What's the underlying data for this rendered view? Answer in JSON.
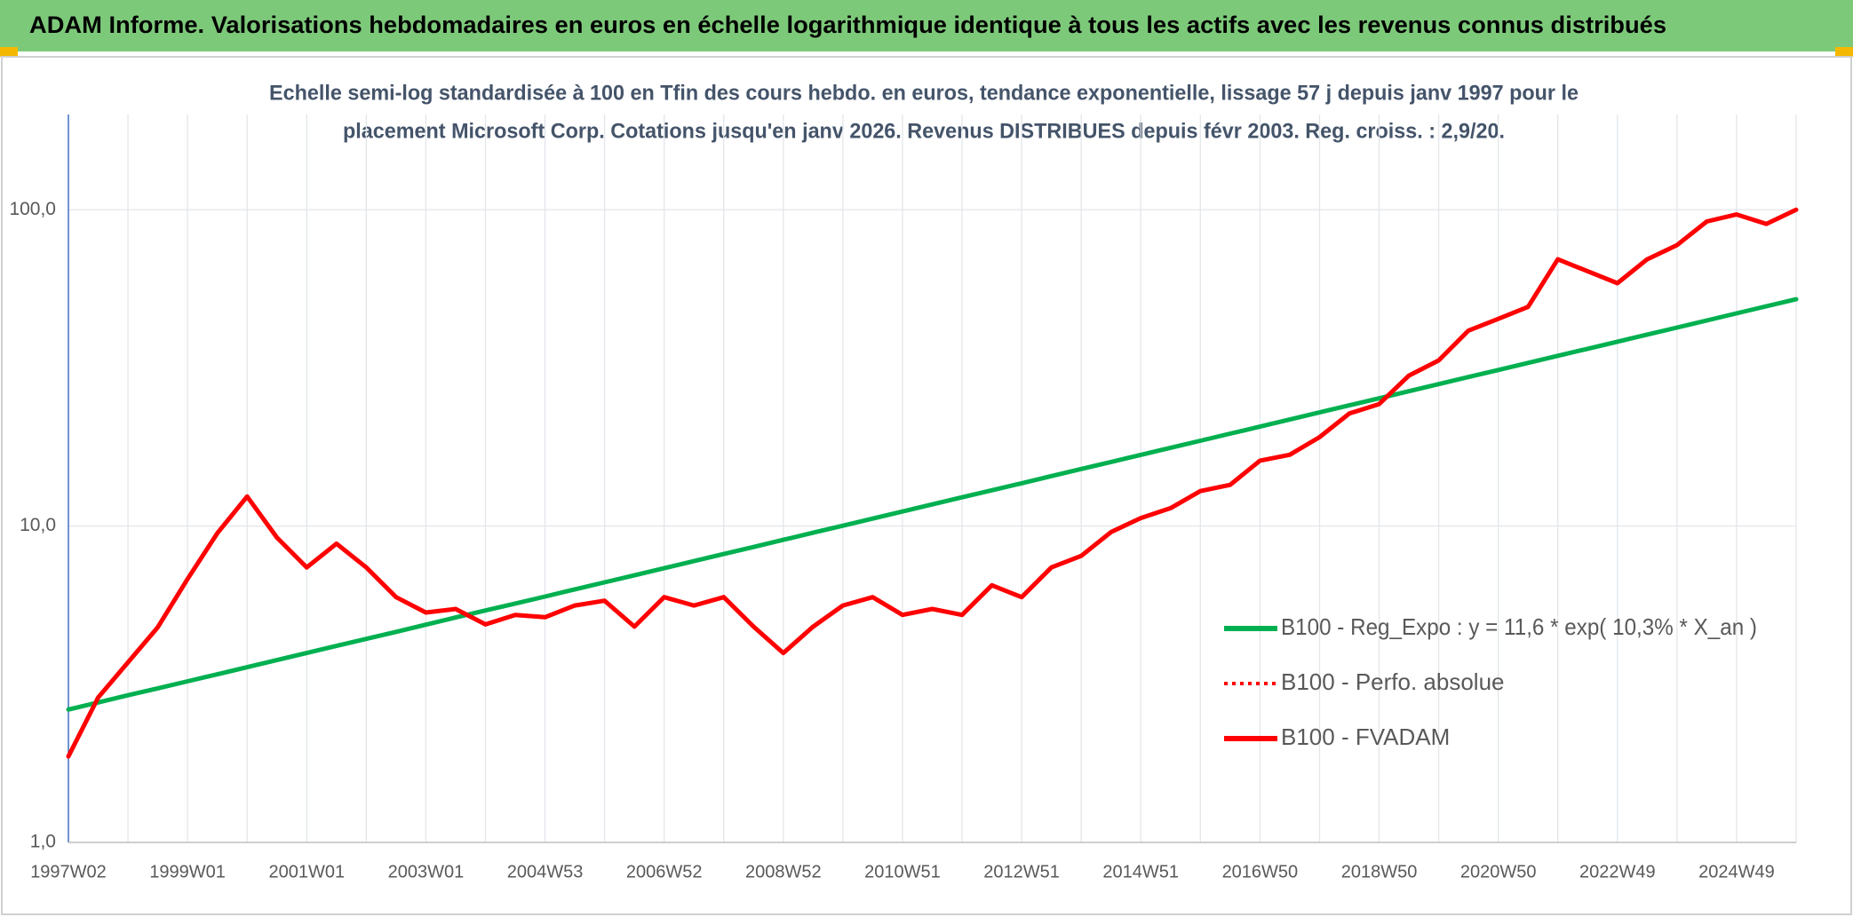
{
  "chart_data": {
    "type": "line",
    "title": "ADAM Informe. Valorisations hebdomadaires en euros en échelle logarithmique identique à tous les actifs avec les revenus connus distribués",
    "subtitle": [
      "Echelle semi-log standardisée à 100 en Tfin des cours hebdo. en euros, tendance exponentielle, lissage 57 j depuis janv 1997 pour le",
      "placement Microsoft Corp. Cotations jusqu'en janv 2026. Revenus DISTRIBUES depuis févr 2003. Reg. croiss. : 2,9/20."
    ],
    "categories": [
      "1997W02",
      null,
      null,
      null,
      "1999W01",
      null,
      null,
      null,
      "2001W01",
      null,
      null,
      null,
      "2003W01",
      null,
      null,
      null,
      "2004W53",
      null,
      null,
      null,
      "2006W52",
      null,
      null,
      null,
      "2008W52",
      null,
      null,
      null,
      "2010W51",
      null,
      null,
      null,
      "2012W51",
      null,
      null,
      null,
      "2014W51",
      null,
      null,
      null,
      "2016W50",
      null,
      null,
      null,
      "2018W50",
      null,
      null,
      null,
      "2020W50",
      null,
      null,
      null,
      "2022W49",
      null,
      null,
      null,
      "2024W49",
      null,
      null
    ],
    "series": [
      {
        "name": "B100 - Reg_Expo : y = 11,6 * exp( 10,3% *  X_an )",
        "color": "#00b050",
        "style": "solid",
        "values": [
          2.63,
          2.77,
          2.92,
          3.07,
          3.23,
          3.4,
          3.58,
          3.77,
          3.97,
          4.18,
          4.4,
          4.63,
          4.88,
          5.14,
          5.41,
          5.69,
          5.99,
          6.31,
          6.64,
          6.99,
          7.36,
          7.75,
          8.16,
          8.59,
          9.05,
          9.53,
          10.03,
          10.56,
          11.12,
          11.71,
          12.33,
          12.98,
          13.66,
          14.39,
          15.15,
          15.95,
          16.79,
          17.68,
          18.61,
          19.6,
          20.63,
          21.72,
          22.87,
          24.08,
          25.35,
          26.69,
          28.1,
          29.59,
          31.15,
          32.8,
          34.53,
          36.36,
          38.28,
          40.3,
          42.43,
          44.67,
          47.03,
          49.52,
          52.13
        ]
      },
      {
        "name": "B100 - Perfo. absolue",
        "color": "#ff0000",
        "style": "dotted",
        "values": [
          1.87,
          2.87,
          3.71,
          4.79,
          6.8,
          9.5,
          12.4,
          9.2,
          7.4,
          8.8,
          7.4,
          5.96,
          5.33,
          5.47,
          4.89,
          5.24,
          5.15,
          5.61,
          5.81,
          4.81,
          5.96,
          5.61,
          5.96,
          4.81,
          3.97,
          4.81,
          5.61,
          5.96,
          5.24,
          5.47,
          5.24,
          6.5,
          5.96,
          7.4,
          8.05,
          9.57,
          10.6,
          11.4,
          12.9,
          13.5,
          16.1,
          16.8,
          19.1,
          22.7,
          24.3,
          29.9,
          33.4,
          41.5,
          45.2,
          49.3,
          69.7,
          63.9,
          58.6,
          69.7,
          77.3,
          91.8,
          96.6,
          90.2,
          100
        ]
      },
      {
        "name": "B100 - FVADAM",
        "color": "#ff0000",
        "style": "solid",
        "values": [
          1.87,
          2.87,
          3.71,
          4.79,
          6.8,
          9.5,
          12.4,
          9.2,
          7.4,
          8.8,
          7.4,
          5.96,
          5.33,
          5.47,
          4.89,
          5.24,
          5.15,
          5.61,
          5.81,
          4.81,
          5.96,
          5.61,
          5.96,
          4.81,
          3.97,
          4.81,
          5.61,
          5.96,
          5.24,
          5.47,
          5.24,
          6.5,
          5.96,
          7.4,
          8.05,
          9.57,
          10.6,
          11.4,
          12.9,
          13.5,
          16.1,
          16.8,
          19.1,
          22.7,
          24.3,
          29.9,
          33.4,
          41.5,
          45.2,
          49.3,
          69.7,
          63.9,
          58.6,
          69.7,
          77.3,
          91.8,
          96.6,
          90.2,
          100
        ]
      }
    ],
    "ylim": [
      1,
      200
    ],
    "yticks": [
      {
        "value": 1,
        "label": "1,0"
      },
      {
        "value": 10,
        "label": "10,0"
      },
      {
        "value": 100,
        "label": "100,0"
      }
    ],
    "log_scale": true,
    "grid": true,
    "legend_position": "right"
  }
}
